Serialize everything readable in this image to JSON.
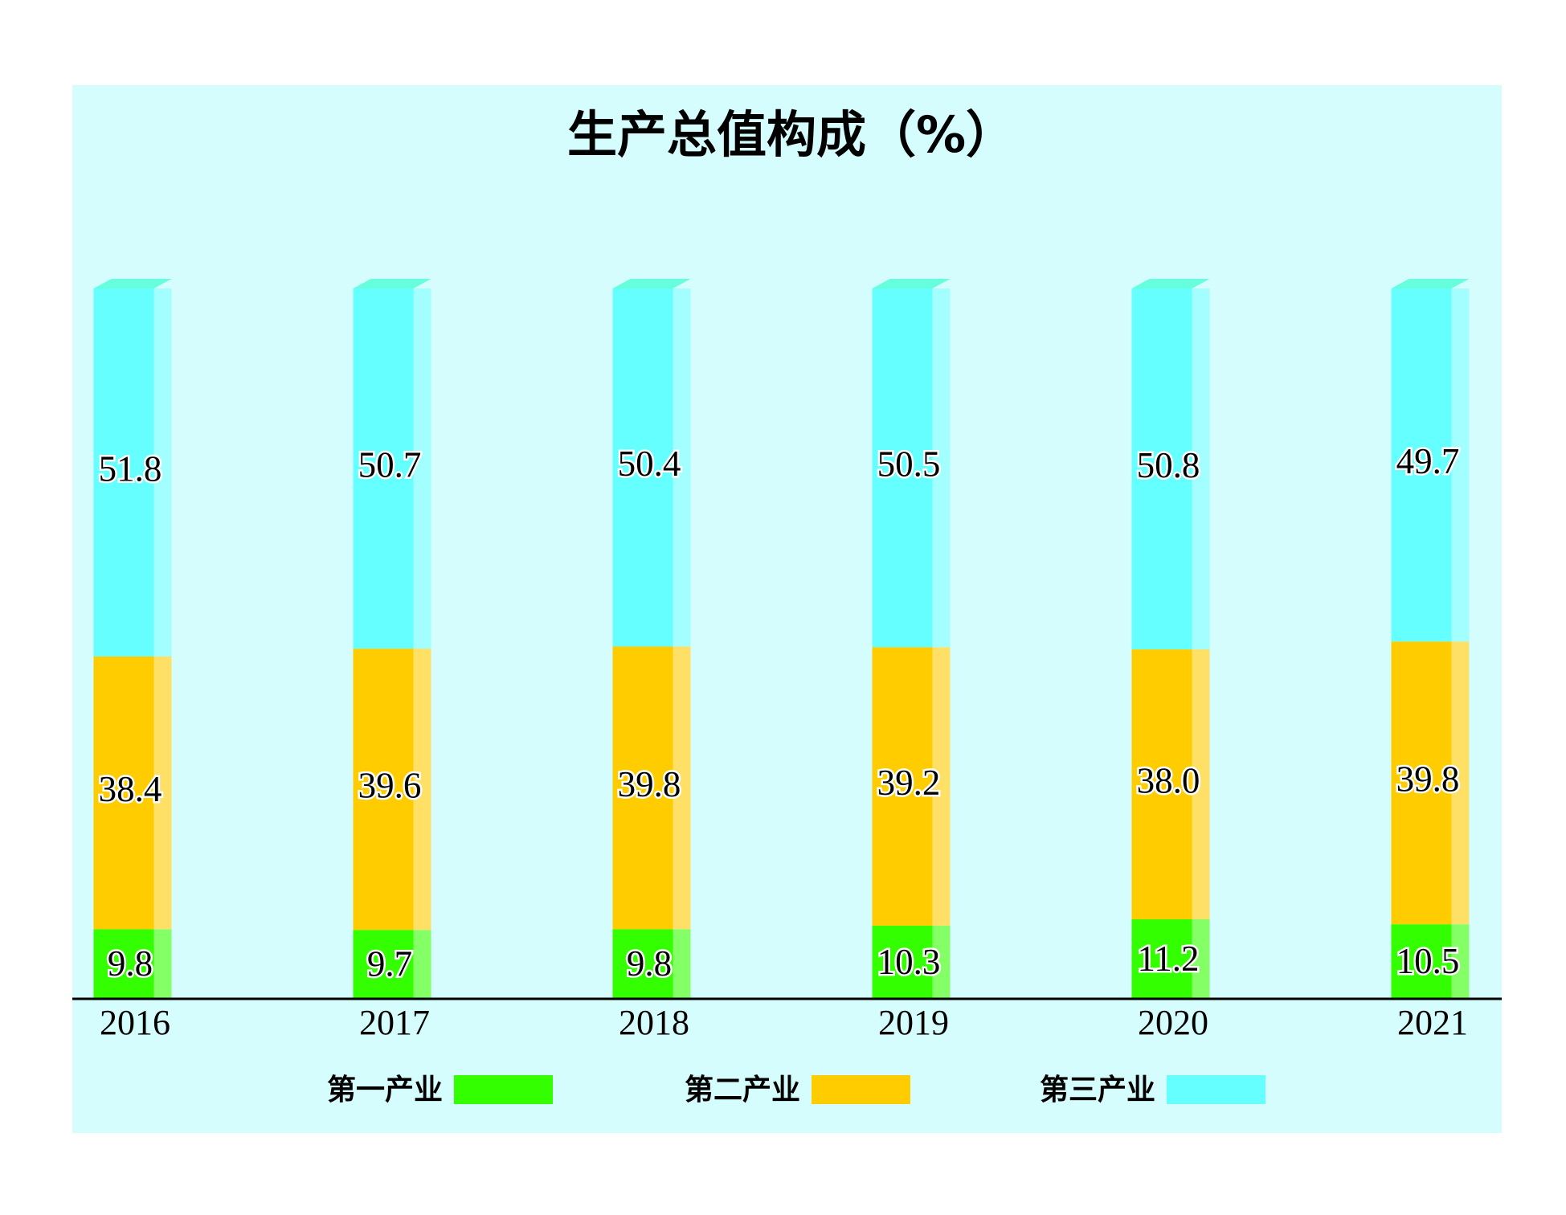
{
  "chart_data": {
    "type": "stacked-bar",
    "title": "生产总值构成（%）",
    "categories": [
      "2016",
      "2017",
      "2018",
      "2019",
      "2020",
      "2021"
    ],
    "series": [
      {
        "name": "第一产业",
        "color": "#33ff00",
        "values": [
          9.8,
          9.7,
          9.8,
          10.3,
          11.2,
          10.5
        ]
      },
      {
        "name": "第二产业",
        "color": "#ffcc00",
        "values": [
          38.4,
          39.6,
          39.8,
          39.2,
          38.0,
          39.8
        ],
        "value_labels": [
          "38.4",
          "39.6",
          "39.8",
          "39.2",
          "38.0",
          "39.8"
        ]
      },
      {
        "name": "第三产业",
        "color": "#66ffff",
        "values": [
          51.8,
          50.7,
          50.4,
          50.5,
          50.8,
          49.7
        ]
      }
    ],
    "ylim": [
      0,
      100
    ]
  }
}
